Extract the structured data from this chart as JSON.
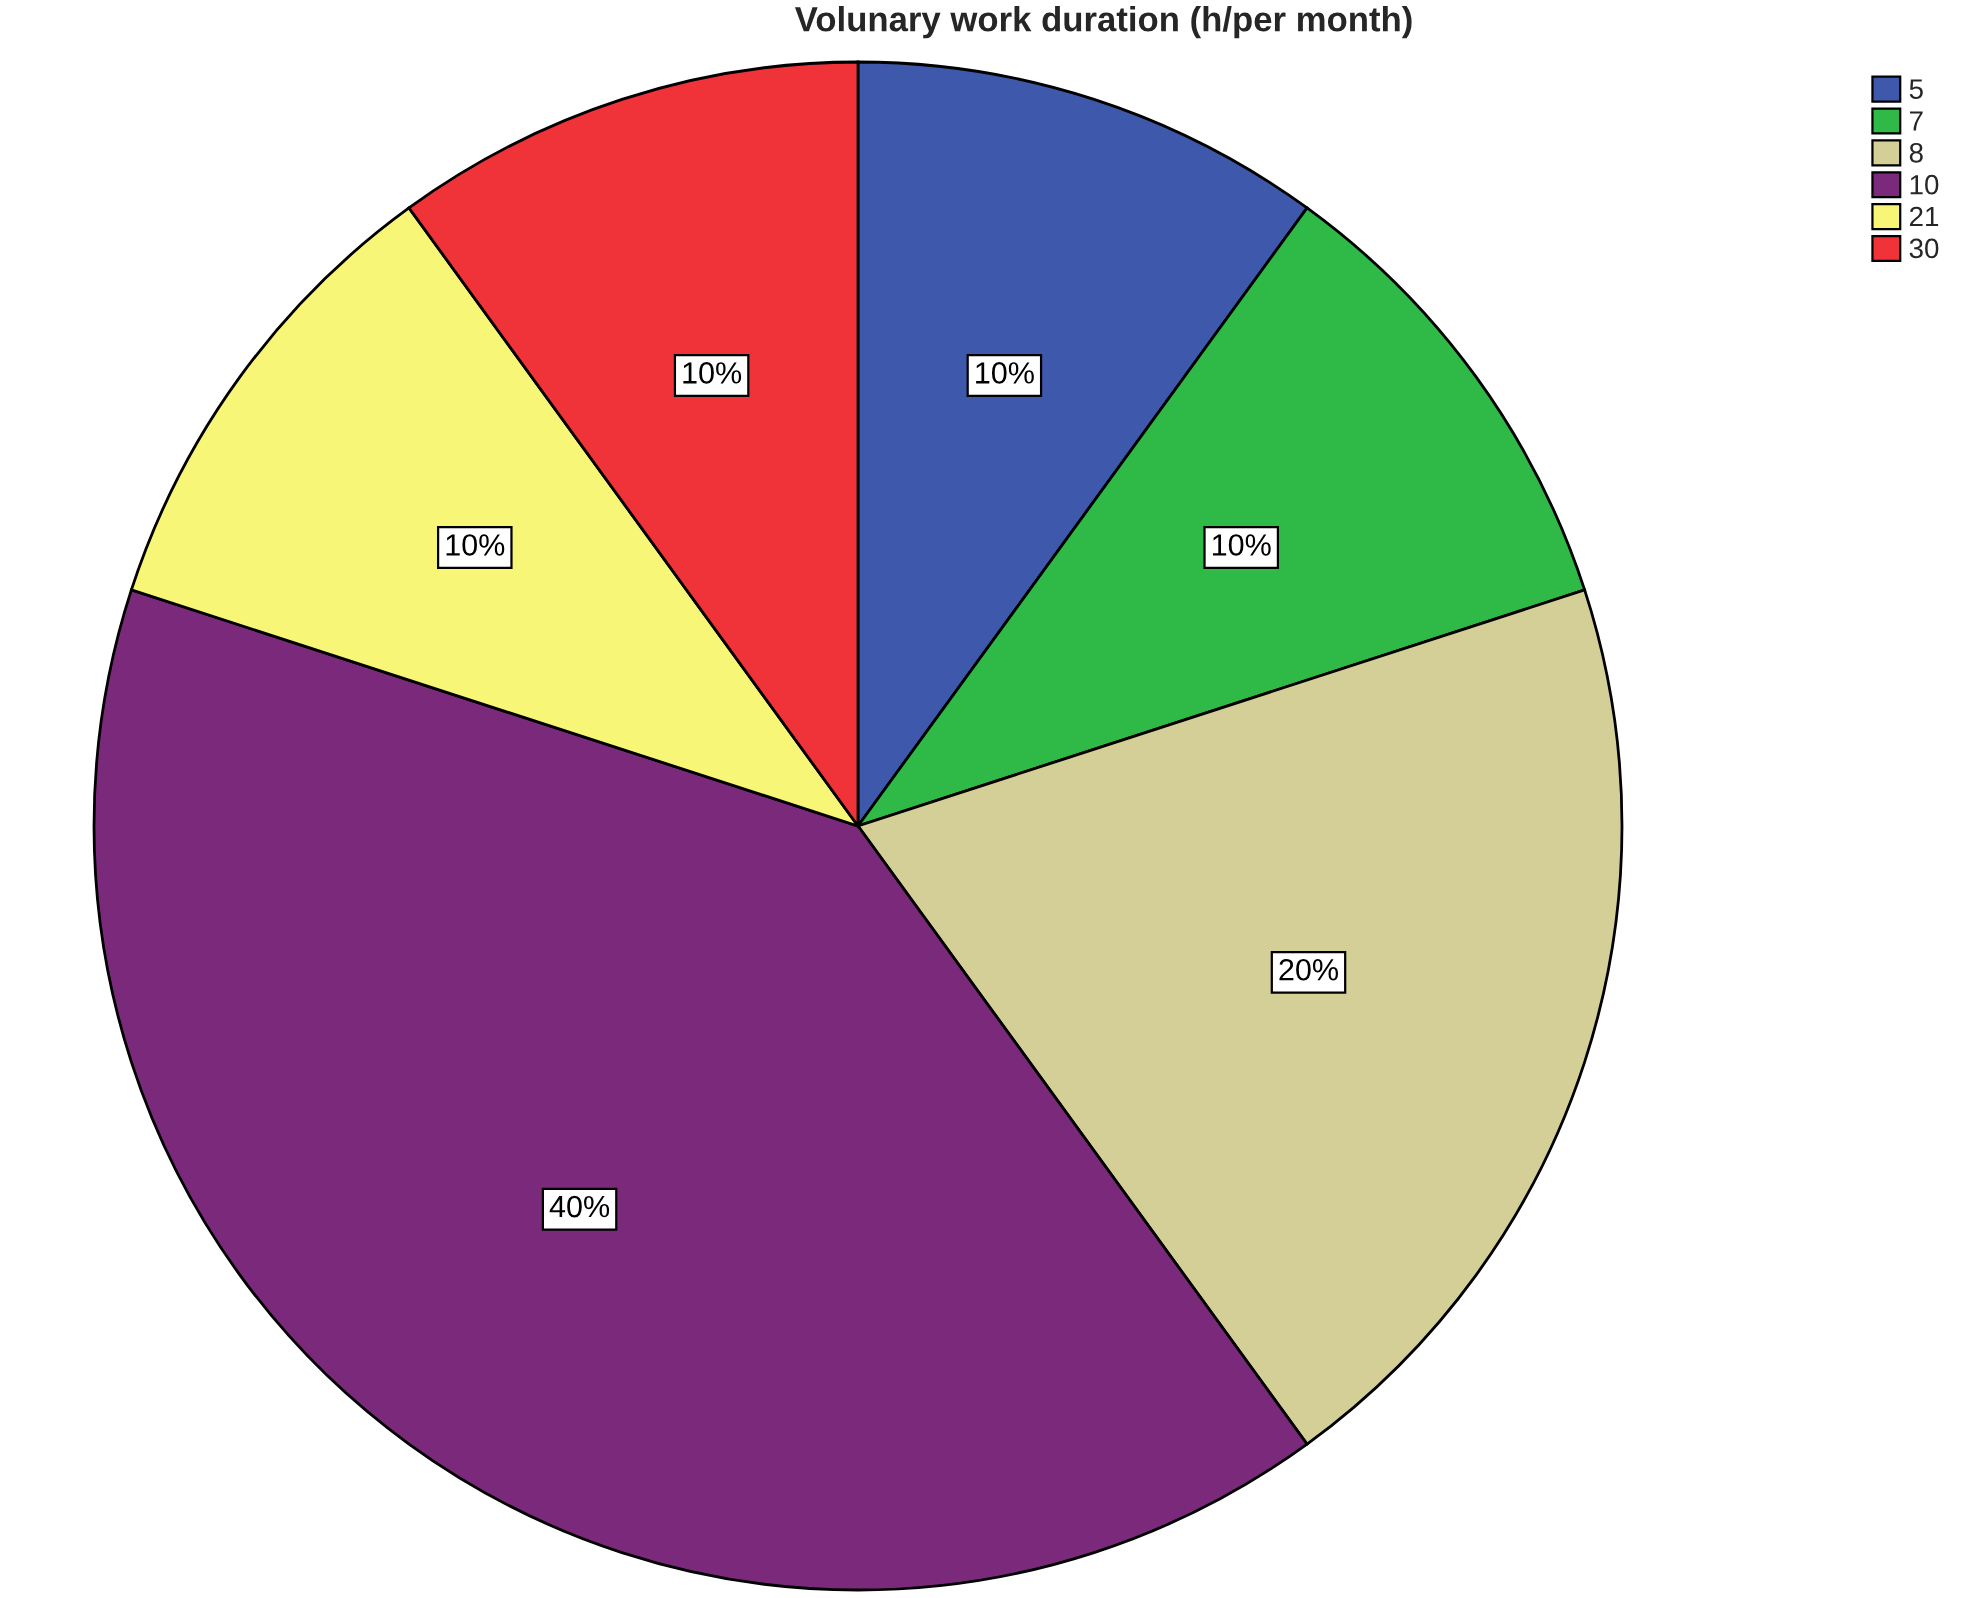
{
  "chart_data": {
    "type": "pie",
    "title": "Volunary work duration (h/per month)",
    "categories": [
      "5",
      "7",
      "8",
      "10",
      "21",
      "30"
    ],
    "values": [
      10,
      10,
      20,
      40,
      10,
      10
    ],
    "colors": [
      "#3e58ac",
      "#2fba47",
      "#d3cf97",
      "#7b2a7b",
      "#f8f677",
      "#ef3339"
    ],
    "value_labels": [
      "10%",
      "10%",
      "20%",
      "40%",
      "10%",
      "10%"
    ],
    "legend": "top right"
  }
}
